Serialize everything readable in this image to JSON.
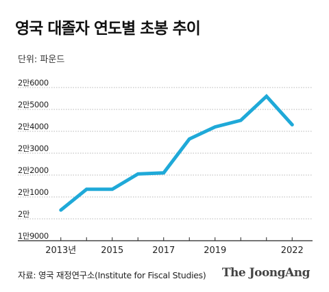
{
  "header": {
    "title": "영국 대졸자 연도별 초봉 추이",
    "unit": "단위: 파운드"
  },
  "footer": {
    "source": "자료: 영국 재정연구소(Institute for Fiscal Studies)",
    "brand": "The JoongAng"
  },
  "colors": {
    "line": "#1fa9d8",
    "grid": "#b5b5b5",
    "axis": "#222222"
  },
  "chart_data": {
    "type": "line",
    "title": "영국 대졸자 연도별 초봉 추이",
    "xlabel": "",
    "ylabel": "단위: 파운드",
    "x": [
      2013,
      2014,
      2015,
      2016,
      2017,
      2018,
      2019,
      2020,
      2021,
      2022
    ],
    "series": [
      {
        "values": [
          20400,
          21350,
          21350,
          22050,
          22100,
          23650,
          24200,
          24500,
          25600,
          24300
        ]
      }
    ],
    "ylim": [
      19000,
      26000
    ],
    "xlim": [
      2012.5,
      2022.5
    ],
    "y_ticks": [
      19000,
      20000,
      21000,
      22000,
      23000,
      24000,
      25000,
      26000
    ],
    "y_tick_labels": [
      "1만9000",
      "2만",
      "2만1000",
      "2만2000",
      "2만3000",
      "2만4000",
      "2만5000",
      "2만6000"
    ],
    "x_ticks": [
      2013,
      2015,
      2017,
      2019,
      2022
    ],
    "x_tick_labels": [
      "2013년",
      "2015",
      "2017",
      "2019",
      "2022"
    ],
    "grid": "horizontal-dotted"
  }
}
